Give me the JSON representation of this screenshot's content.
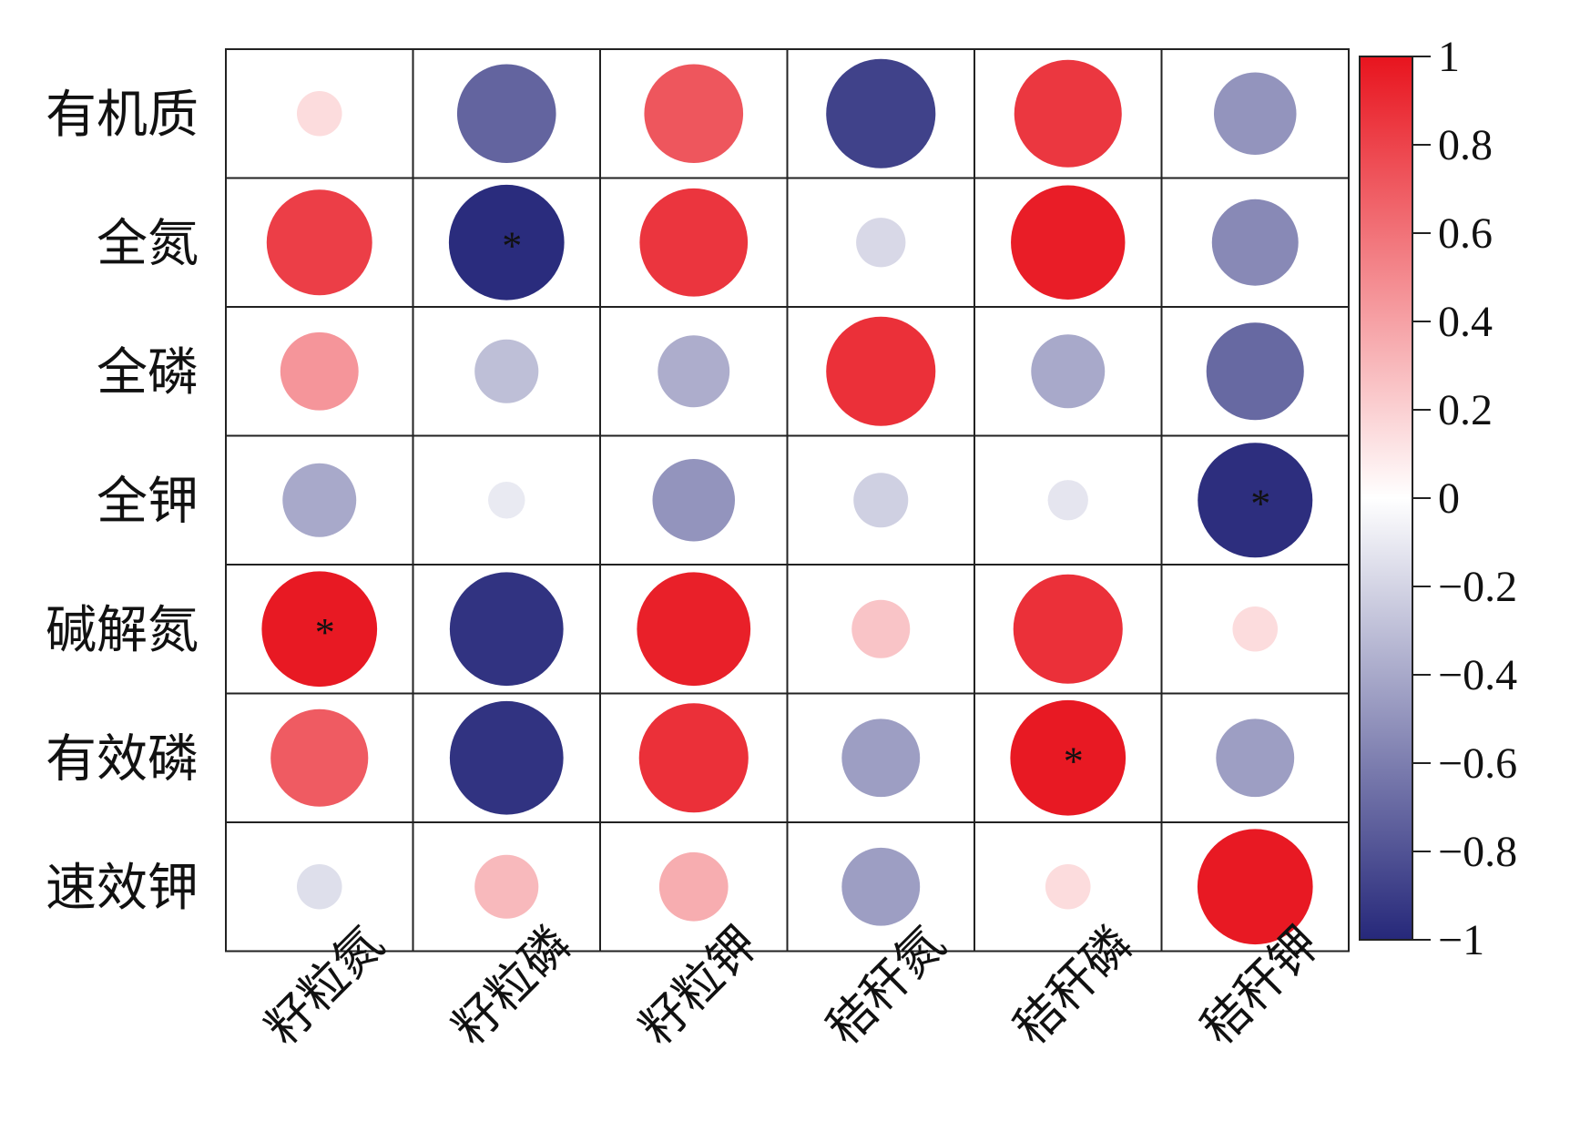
{
  "chart_data": {
    "type": "heatmap",
    "subtype": "correlation-circle",
    "rows": [
      "有机质",
      "全氮",
      "全磷",
      "全钾",
      "碱解氮",
      "有效磷",
      "速效钾"
    ],
    "columns": [
      "籽粒氮",
      "籽粒磷",
      "籽粒钾",
      "秸秆氮",
      "秸秆磷",
      "秸秆钾"
    ],
    "values": [
      [
        0.15,
        -0.72,
        0.72,
        -0.88,
        0.85,
        -0.5
      ],
      [
        0.82,
        -0.98,
        0.86,
        -0.18,
        0.96,
        -0.55
      ],
      [
        0.45,
        -0.3,
        -0.38,
        0.88,
        -0.4,
        -0.7
      ],
      [
        -0.4,
        -0.1,
        -0.5,
        -0.22,
        -0.12,
        -0.97
      ],
      [
        0.98,
        -0.95,
        0.95,
        0.25,
        0.88,
        0.15
      ],
      [
        0.7,
        -0.95,
        0.88,
        -0.45,
        0.98,
        -0.45
      ],
      [
        -0.15,
        0.3,
        0.35,
        -0.45,
        0.15,
        0.98
      ]
    ],
    "significant": [
      [
        false,
        false,
        false,
        false,
        false,
        false
      ],
      [
        false,
        true,
        false,
        false,
        false,
        false
      ],
      [
        false,
        false,
        false,
        false,
        false,
        false
      ],
      [
        false,
        false,
        false,
        false,
        false,
        true
      ],
      [
        true,
        false,
        false,
        false,
        false,
        false
      ],
      [
        false,
        false,
        false,
        false,
        true,
        false
      ],
      [
        false,
        false,
        false,
        false,
        false,
        false
      ]
    ],
    "significance_marker": "*",
    "colorbar": {
      "range": [
        -1,
        1
      ],
      "ticks": [
        1,
        0.8,
        0.6,
        0.4,
        0.2,
        0,
        -0.2,
        -0.4,
        -0.6,
        -0.8,
        -1
      ],
      "tick_labels": [
        "1",
        "0.8",
        "0.6",
        "0.4",
        "0.2",
        "0",
        "−0.2",
        "−0.4",
        "−0.6",
        "−0.8",
        "−1"
      ],
      "colors": {
        "negative": "#26287a",
        "zero": "#ffffff",
        "positive": "#e8141e"
      }
    },
    "grid": true,
    "legend": "right"
  }
}
